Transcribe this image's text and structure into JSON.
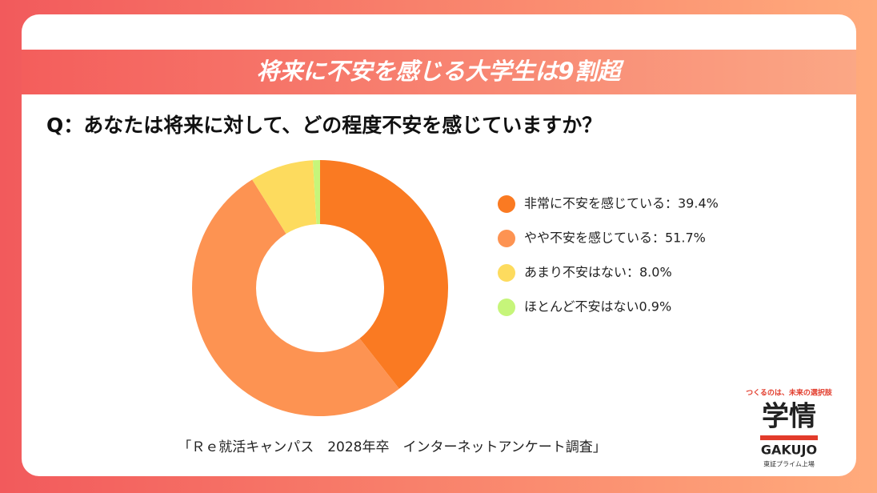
{
  "chart_data": {
    "type": "donut",
    "title": "将来に不安を感じる大学生は9割超",
    "subtitle": "Q：あなたは将来に対して、どの程度不安を感じていますか？",
    "source": "「Ｒｅ就活キャンパス　2028年卒　インターネットアンケート調査」",
    "categories": [
      "非常に不安を感じている：39.4%",
      "やや不安を感じている：51.7%",
      "あまり不安はない：8.0%",
      "ほとんど不安はない0.9%"
    ],
    "values": [
      39.4,
      51.7,
      8.0,
      0.9
    ],
    "colors": [
      "#fa7a22",
      "#fd9352",
      "#fddb5e",
      "#c6f57a"
    ]
  },
  "logo": {
    "tagline": "つくるのは、未来の選択肢",
    "name": "学情",
    "roman": "GAKUJO",
    "listing": "東証プライム上場"
  }
}
